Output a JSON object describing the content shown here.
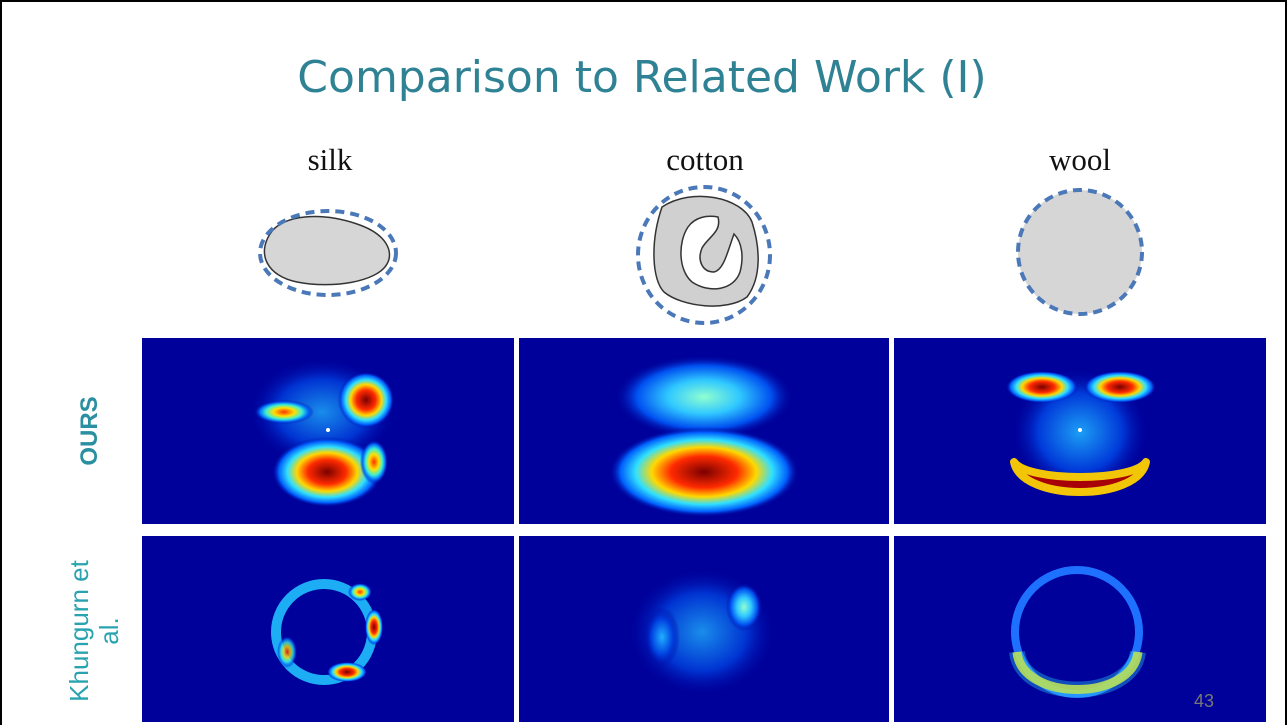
{
  "title": "Comparison to Related Work (I)",
  "columns": [
    "silk",
    "cotton",
    "wool"
  ],
  "rows": [
    "OURS",
    "Khungurn et al."
  ],
  "page_number": "43"
}
